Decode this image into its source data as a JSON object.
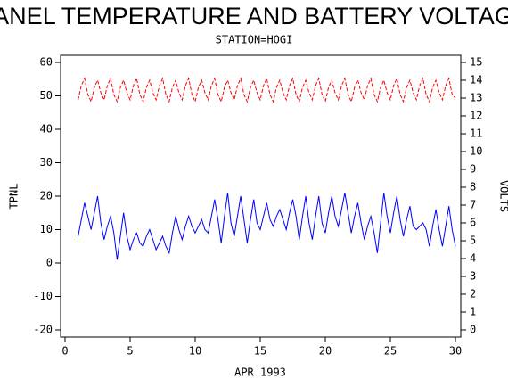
{
  "chart_data": {
    "type": "line",
    "title": "PANEL TEMPERATURE AND BATTERY VOLTAGE",
    "subtitle": "STATION=HOGI",
    "xlabel": "APR 1993",
    "ylabel": "TPNL",
    "y2label": "VOLTS",
    "xlim": [
      0,
      30
    ],
    "xticks": [
      0,
      5,
      10,
      15,
      20,
      25,
      30
    ],
    "ylim": [
      -20,
      60
    ],
    "yticks": [
      -20,
      -10,
      0,
      10,
      20,
      30,
      40,
      50,
      60
    ],
    "y2lim": [
      0,
      15
    ],
    "y2ticks": [
      0,
      1,
      2,
      3,
      4,
      5,
      6,
      7,
      8,
      9,
      10,
      11,
      12,
      13,
      14,
      15
    ],
    "x": [
      1,
      1.25,
      1.5,
      1.75,
      2,
      2.25,
      2.5,
      2.75,
      3,
      3.25,
      3.5,
      3.75,
      4,
      4.25,
      4.5,
      4.75,
      5,
      5.25,
      5.5,
      5.75,
      6,
      6.25,
      6.5,
      6.75,
      7,
      7.25,
      7.5,
      7.75,
      8,
      8.25,
      8.5,
      8.75,
      9,
      9.25,
      9.5,
      9.75,
      10,
      10.25,
      10.5,
      10.75,
      11,
      11.25,
      11.5,
      11.75,
      12,
      12.25,
      12.5,
      12.75,
      13,
      13.25,
      13.5,
      13.75,
      14,
      14.25,
      14.5,
      14.75,
      15,
      15.25,
      15.5,
      15.75,
      16,
      16.25,
      16.5,
      16.75,
      17,
      17.25,
      17.5,
      17.75,
      18,
      18.25,
      18.5,
      18.75,
      19,
      19.25,
      19.5,
      19.75,
      20,
      20.25,
      20.5,
      20.75,
      21,
      21.25,
      21.5,
      21.75,
      22,
      22.25,
      22.5,
      22.75,
      23,
      23.25,
      23.5,
      23.75,
      24,
      24.25,
      24.5,
      24.75,
      25,
      25.25,
      25.5,
      25.75,
      26,
      26.25,
      26.5,
      26.75,
      27,
      27.25,
      27.5,
      27.75,
      28,
      28.25,
      28.5,
      28.75,
      29,
      29.25,
      29.5,
      29.75,
      30
    ],
    "series": [
      {
        "name": "TPNL",
        "color": "#0000ff",
        "axis": "y",
        "dashed": false,
        "values": [
          8,
          13,
          18,
          14,
          10,
          15,
          20,
          12,
          7,
          11,
          14,
          9,
          1,
          8,
          15,
          8,
          4,
          7,
          9,
          6,
          5,
          8,
          10,
          7,
          4,
          6,
          8,
          5,
          3,
          9,
          14,
          10,
          7,
          11,
          14,
          11,
          9,
          11,
          13,
          10,
          9,
          14,
          19,
          13,
          6,
          14,
          21,
          12,
          8,
          14,
          20,
          13,
          6,
          13,
          19,
          12,
          10,
          14,
          18,
          13,
          11,
          14,
          16,
          13,
          10,
          15,
          19,
          14,
          7,
          14,
          20,
          12,
          7,
          14,
          20,
          12,
          9,
          15,
          20,
          14,
          11,
          16,
          21,
          15,
          9,
          14,
          18,
          12,
          7,
          11,
          14,
          9,
          3,
          12,
          21,
          14,
          9,
          15,
          20,
          13,
          8,
          13,
          17,
          11,
          10,
          11,
          12,
          10,
          5,
          11,
          16,
          10,
          5,
          11,
          17,
          10,
          5
        ]
      },
      {
        "name": "VOLTS",
        "color": "#ff0000",
        "axis": "y2",
        "dashed": true,
        "values": [
          12.9,
          13.7,
          14.1,
          13.2,
          12.8,
          13.6,
          14.0,
          13.3,
          12.9,
          13.7,
          14.1,
          13.2,
          12.8,
          13.6,
          14.0,
          13.3,
          12.9,
          13.7,
          14.1,
          13.2,
          12.8,
          13.6,
          14.0,
          13.3,
          12.9,
          13.7,
          14.1,
          13.2,
          12.8,
          13.6,
          14.0,
          13.3,
          12.9,
          13.7,
          14.1,
          13.2,
          12.8,
          13.6,
          14.0,
          13.3,
          12.9,
          13.7,
          14.1,
          13.2,
          12.8,
          13.6,
          14.0,
          13.3,
          12.9,
          13.7,
          14.1,
          13.2,
          12.8,
          13.6,
          14.0,
          13.3,
          12.9,
          13.7,
          14.1,
          13.2,
          12.8,
          13.6,
          14.0,
          13.3,
          12.9,
          13.7,
          14.1,
          13.2,
          12.8,
          13.6,
          14.0,
          13.3,
          12.9,
          13.7,
          14.1,
          13.2,
          12.8,
          13.6,
          14.0,
          13.3,
          12.9,
          13.7,
          14.1,
          13.2,
          12.8,
          13.6,
          14.0,
          13.3,
          12.9,
          13.7,
          14.1,
          13.2,
          12.8,
          13.6,
          14.0,
          13.3,
          12.9,
          13.7,
          14.1,
          13.2,
          12.8,
          13.6,
          14.0,
          13.3,
          12.9,
          13.7,
          14.1,
          13.2,
          12.8,
          13.6,
          14.0,
          13.3,
          12.9,
          13.7,
          14.1,
          13.2,
          13.0
        ]
      }
    ]
  }
}
